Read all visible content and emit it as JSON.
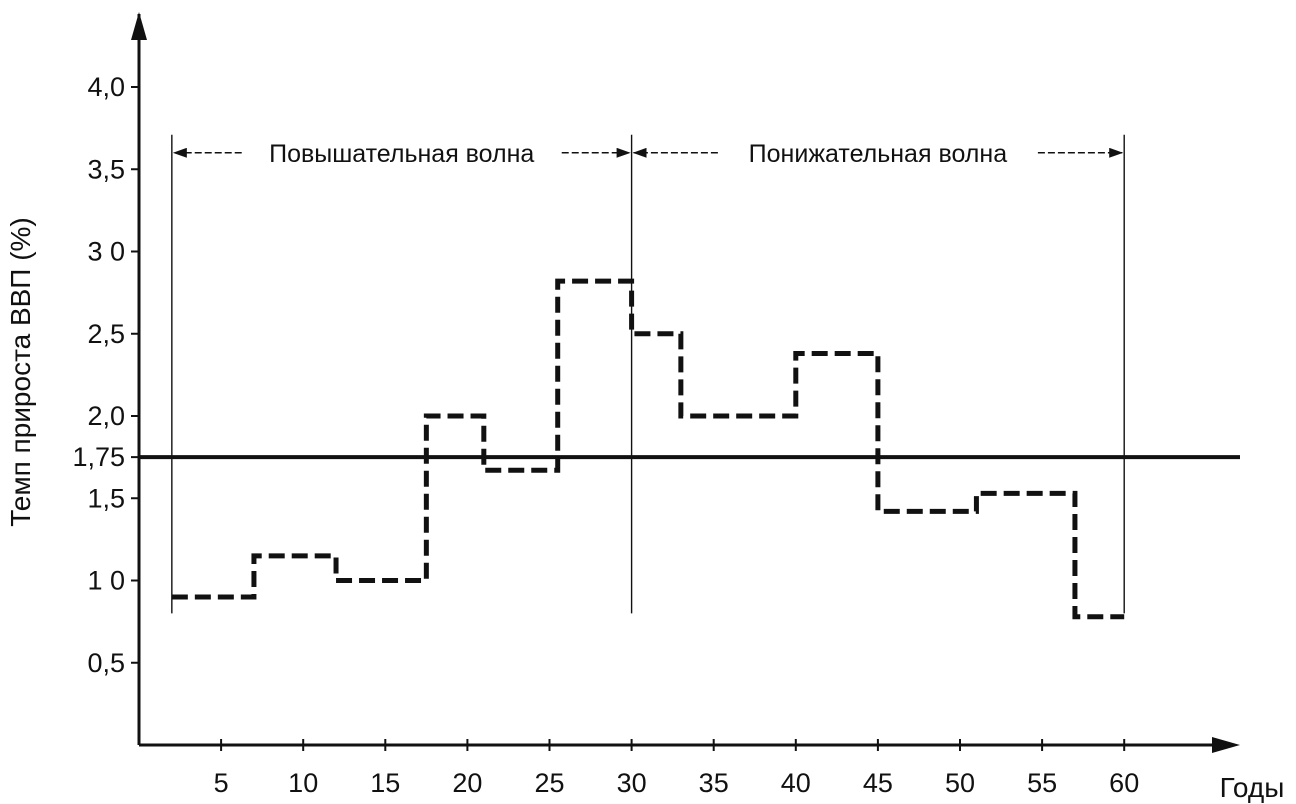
{
  "chart_data": {
    "type": "line",
    "title": "",
    "xlabel": "Годы",
    "ylabel": "Темп прироста ВВП (%)",
    "xlim": [
      -1,
      63
    ],
    "ylim": [
      0,
      4.5
    ],
    "x_ticks": [
      5,
      10,
      15,
      20,
      25,
      30,
      35,
      40,
      45,
      50,
      55,
      60
    ],
    "x_tick_labels": [
      "5",
      "10",
      "15",
      "20",
      "25",
      "30",
      "35",
      "40",
      "45",
      "50",
      "55",
      "60"
    ],
    "y_ticks": [
      0.5,
      1.0,
      1.5,
      1.75,
      2.0,
      2.5,
      3.0,
      3.5,
      4.0
    ],
    "y_tick_labels": [
      "0,5",
      "1 0",
      "1,5",
      "1,75",
      "2,0",
      "2,5",
      "3 0",
      "3,5",
      "4,0"
    ],
    "grid": false,
    "legend": "none",
    "series": [
      {
        "style": "dashed-step",
        "color": "#111111",
        "steps": [
          {
            "x0": 2,
            "x1": 7,
            "y": 0.9
          },
          {
            "x0": 7,
            "x1": 12,
            "y": 1.15
          },
          {
            "x0": 12,
            "x1": 17.5,
            "y": 1.0
          },
          {
            "x0": 17.5,
            "x1": 21,
            "y": 2.0
          },
          {
            "x0": 21,
            "x1": 25.5,
            "y": 1.67
          },
          {
            "x0": 25.5,
            "x1": 30,
            "y": 2.82
          },
          {
            "x0": 30,
            "x1": 33,
            "y": 2.5
          },
          {
            "x0": 33,
            "x1": 40,
            "y": 2.0
          },
          {
            "x0": 40,
            "x1": 45,
            "y": 2.38
          },
          {
            "x0": 45,
            "x1": 51,
            "y": 1.42
          },
          {
            "x0": 51,
            "x1": 57,
            "y": 1.53
          },
          {
            "x0": 57,
            "x1": 60,
            "y": 0.78
          }
        ]
      }
    ],
    "reference_line": {
      "y": 1.75,
      "style": "solid",
      "color": "#111111"
    },
    "annotations": [
      {
        "text": "Повышательная волна",
        "x_from": 2,
        "x_to": 30,
        "y": 3.6
      },
      {
        "text": "Понижательная волна",
        "x_from": 30,
        "x_to": 60,
        "y": 3.6
      }
    ],
    "wave_boundaries_x": [
      2,
      30,
      60
    ]
  }
}
